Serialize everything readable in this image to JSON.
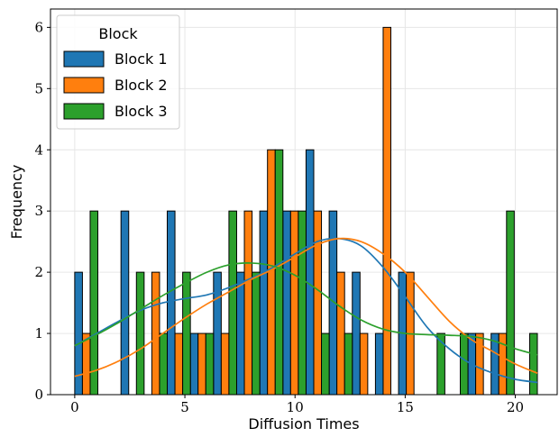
{
  "chart_data": {
    "type": "bar",
    "xlabel": "Diffusion Times",
    "ylabel": "Frequency",
    "xlim": [
      -1.1,
      21.9
    ],
    "ylim": [
      0,
      6.3
    ],
    "xticks": [
      0,
      5,
      10,
      15,
      20
    ],
    "yticks": [
      0,
      1,
      2,
      3,
      4,
      5,
      6
    ],
    "grid": true,
    "legend": {
      "title": "Block",
      "position": "top-left"
    },
    "bin_edges": [
      0,
      1.05,
      2.1,
      3.15,
      4.2,
      5.25,
      6.3,
      7.35,
      8.4,
      9.45,
      10.5,
      11.55,
      12.6,
      13.65,
      14.7,
      15.75,
      16.8,
      17.85,
      18.9,
      19.95,
      21.0
    ],
    "series": [
      {
        "name": "Block 1",
        "color": "#1f77b4",
        "values": [
          2,
          0,
          3,
          0,
          3,
          1,
          2,
          2,
          3,
          3,
          4,
          3,
          2,
          1,
          2,
          0,
          0,
          1,
          1,
          0
        ],
        "kde_x": [
          0,
          1,
          2,
          3,
          4,
          5,
          6,
          7,
          8,
          9,
          10,
          11,
          12,
          13,
          14,
          15,
          16,
          17,
          18,
          19,
          20,
          21
        ],
        "kde_y": [
          0.8,
          1.0,
          1.2,
          1.38,
          1.5,
          1.57,
          1.63,
          1.75,
          1.9,
          2.08,
          2.3,
          2.5,
          2.55,
          2.43,
          2.08,
          1.6,
          1.1,
          0.75,
          0.5,
          0.35,
          0.25,
          0.2
        ]
      },
      {
        "name": "Block 2",
        "color": "#ff7f0e",
        "values": [
          1,
          0,
          0,
          2,
          1,
          1,
          1,
          3,
          4,
          3,
          3,
          2,
          1,
          6,
          2,
          0,
          0,
          1,
          1,
          0
        ],
        "kde_x": [
          0,
          1,
          2,
          3,
          4,
          5,
          6,
          7,
          8,
          9,
          10,
          11,
          12,
          13,
          14,
          15,
          16,
          17,
          18,
          19,
          20,
          21
        ],
        "kde_y": [
          0.3,
          0.4,
          0.55,
          0.75,
          1.0,
          1.25,
          1.48,
          1.68,
          1.88,
          2.05,
          2.25,
          2.45,
          2.55,
          2.5,
          2.3,
          2.0,
          1.6,
          1.2,
          0.9,
          0.7,
          0.5,
          0.35
        ]
      },
      {
        "name": "Block 3",
        "color": "#2ca02c",
        "values": [
          3,
          0,
          2,
          1,
          2,
          1,
          3,
          2,
          4,
          3,
          1,
          1,
          0,
          0,
          0,
          1,
          1,
          0,
          3,
          1
        ],
        "kde_x": [
          0,
          1,
          2,
          3,
          4,
          5,
          6,
          7,
          8,
          9,
          10,
          11,
          12,
          13,
          14,
          15,
          16,
          17,
          18,
          19,
          20,
          21
        ],
        "kde_y": [
          0.8,
          0.98,
          1.18,
          1.4,
          1.62,
          1.82,
          2.0,
          2.12,
          2.15,
          2.1,
          1.95,
          1.72,
          1.45,
          1.22,
          1.07,
          1.0,
          0.98,
          0.97,
          0.95,
          0.88,
          0.75,
          0.65
        ]
      }
    ]
  }
}
